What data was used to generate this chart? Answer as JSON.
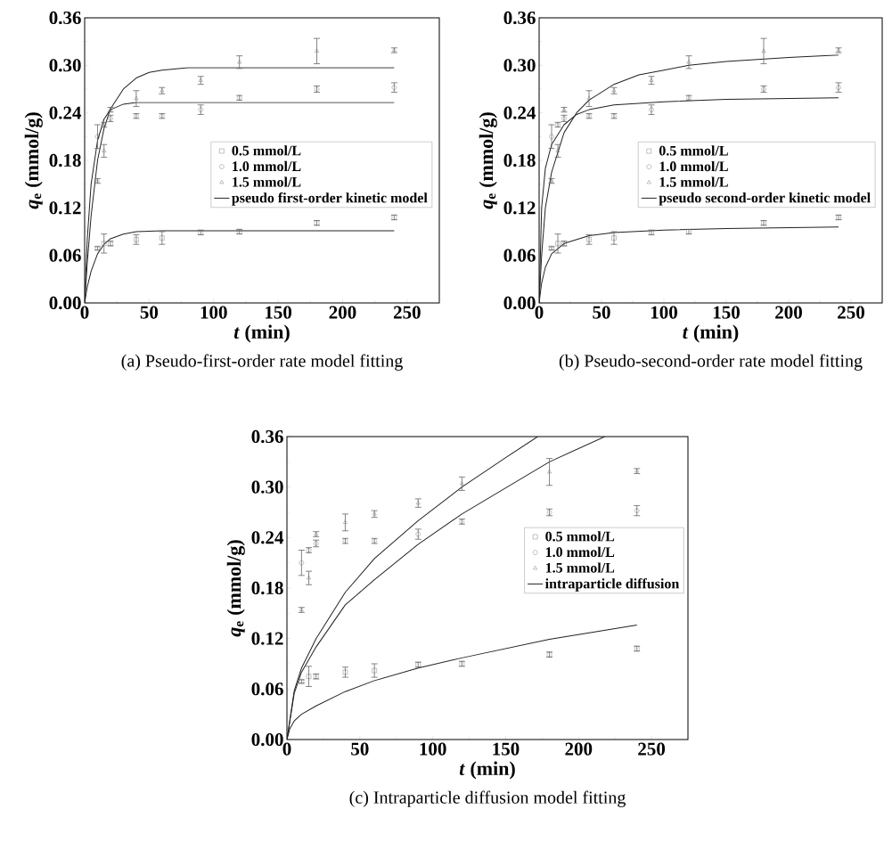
{
  "chart_data": [
    {
      "type": "scatter",
      "title": "(a) Pseudo-first-order rate model fitting",
      "xlabel": "*t* (min)",
      "ylabel": "*q*$_{e}$ (mmol/g)",
      "xlim": [
        0,
        275
      ],
      "ylim": [
        0,
        0.36
      ],
      "xticks": [
        0,
        50,
        100,
        150,
        200,
        250
      ],
      "yticks": [
        {
          "value": 0,
          "label": "0.00"
        },
        {
          "value": 0.06,
          "label": "0.06"
        },
        {
          "value": 0.12,
          "label": "0.12"
        },
        {
          "value": 0.18,
          "label": "0.18"
        },
        {
          "value": 0.24,
          "label": "0.24"
        },
        {
          "value": 0.3,
          "label": "0.30"
        },
        {
          "value": 0.36,
          "label": "0.36"
        }
      ],
      "legend": "right",
      "series": [
        {
          "name": "0.5 mmol/L",
          "marker": "square",
          "color": "#666666",
          "x": [
            10,
            15,
            20,
            40,
            60,
            90,
            120,
            180,
            240
          ],
          "values": [
            0.069,
            0.075,
            0.075,
            0.08,
            0.082,
            0.089,
            0.09,
            0.101,
            0.108
          ],
          "errors": [
            0.002,
            0.012,
            0.003,
            0.006,
            0.008,
            0.003,
            0.003,
            0.003,
            0.003
          ]
        },
        {
          "name": "1.0 mmol/L",
          "marker": "circle",
          "color": "#666666",
          "x": [
            10,
            15,
            20,
            40,
            60,
            90,
            120,
            180,
            240
          ],
          "values": [
            0.21,
            0.225,
            0.233,
            0.236,
            0.236,
            0.244,
            0.259,
            0.27,
            0.272
          ],
          "errors": [
            0.015,
            0.003,
            0.004,
            0.003,
            0.003,
            0.006,
            0.003,
            0.004,
            0.006
          ]
        },
        {
          "name": "1.5 mmol/L",
          "marker": "triangle",
          "color": "#666666",
          "x": [
            10,
            15,
            20,
            40,
            60,
            90,
            120,
            180,
            240
          ],
          "values": [
            0.154,
            0.192,
            0.244,
            0.258,
            0.268,
            0.281,
            0.304,
            0.318,
            0.319
          ],
          "errors": [
            0.003,
            0.008,
            0.003,
            0.01,
            0.004,
            0.005,
            0.008,
            0.016,
            0.003
          ]
        },
        {
          "name": "pseudo first-order kinetic model",
          "type": "line",
          "color": "#222222",
          "x": [
            0,
            2,
            5,
            10,
            15,
            20,
            30,
            40,
            60,
            100,
            240
          ],
          "values": [
            0,
            0.02,
            0.04,
            0.062,
            0.074,
            0.081,
            0.087,
            0.09,
            0.091,
            0.091,
            0.091
          ]
        },
        {
          "type": "line",
          "color": "#222222",
          "x": [
            0,
            2,
            5,
            10,
            15,
            20,
            30,
            40,
            60,
            240
          ],
          "values": [
            0,
            0.08,
            0.15,
            0.205,
            0.232,
            0.244,
            0.251,
            0.253,
            0.253,
            0.253
          ]
        },
        {
          "type": "line",
          "color": "#222222",
          "x": [
            0,
            2,
            5,
            10,
            15,
            20,
            30,
            40,
            50,
            60,
            80,
            100,
            240
          ],
          "values": [
            0,
            0.05,
            0.11,
            0.18,
            0.22,
            0.245,
            0.27,
            0.284,
            0.291,
            0.294,
            0.297,
            0.297,
            0.297
          ]
        }
      ]
    },
    {
      "type": "scatter",
      "title": "(b) Pseudo-second-order rate model fitting",
      "xlabel": "*t* (min)",
      "ylabel": "*q*$_{e}$ (mmol/g)",
      "xlim": [
        0,
        275
      ],
      "ylim": [
        0,
        0.36
      ],
      "xticks": [
        0,
        50,
        100,
        150,
        200,
        250
      ],
      "yticks": [
        {
          "value": 0,
          "label": "0.00"
        },
        {
          "value": 0.06,
          "label": "0.06"
        },
        {
          "value": 0.12,
          "label": "0.12"
        },
        {
          "value": 0.18,
          "label": "0.18"
        },
        {
          "value": 0.24,
          "label": "0.24"
        },
        {
          "value": 0.3,
          "label": "0.30"
        },
        {
          "value": 0.36,
          "label": "0.36"
        }
      ],
      "legend": "right",
      "series": [
        {
          "name": "0.5 mmol/L",
          "marker": "square",
          "color": "#666666",
          "x": [
            10,
            15,
            20,
            40,
            60,
            90,
            120,
            180,
            240
          ],
          "values": [
            0.069,
            0.075,
            0.075,
            0.08,
            0.082,
            0.089,
            0.09,
            0.101,
            0.108
          ],
          "errors": [
            0.002,
            0.012,
            0.003,
            0.006,
            0.008,
            0.003,
            0.003,
            0.003,
            0.003
          ]
        },
        {
          "name": "1.0 mmol/L",
          "marker": "circle",
          "color": "#666666",
          "x": [
            10,
            15,
            20,
            40,
            60,
            90,
            120,
            180,
            240
          ],
          "values": [
            0.21,
            0.225,
            0.233,
            0.236,
            0.236,
            0.244,
            0.259,
            0.27,
            0.272
          ],
          "errors": [
            0.015,
            0.003,
            0.004,
            0.003,
            0.003,
            0.006,
            0.003,
            0.004,
            0.006
          ]
        },
        {
          "name": "1.5 mmol/L",
          "marker": "triangle",
          "color": "#666666",
          "x": [
            10,
            15,
            20,
            40,
            60,
            90,
            120,
            180,
            240
          ],
          "values": [
            0.154,
            0.192,
            0.244,
            0.258,
            0.268,
            0.281,
            0.304,
            0.318,
            0.319
          ],
          "errors": [
            0.003,
            0.008,
            0.003,
            0.01,
            0.004,
            0.005,
            0.008,
            0.016,
            0.003
          ]
        },
        {
          "name": "pseudo second-order kinetic model",
          "type": "line",
          "color": "#222222",
          "x": [
            0,
            2,
            5,
            10,
            20,
            40,
            60,
            100,
            150,
            240
          ],
          "values": [
            0,
            0.025,
            0.045,
            0.062,
            0.075,
            0.085,
            0.089,
            0.092,
            0.094,
            0.096
          ]
        },
        {
          "type": "line",
          "color": "#222222",
          "x": [
            0,
            2,
            5,
            10,
            20,
            30,
            40,
            60,
            100,
            150,
            240
          ],
          "values": [
            0,
            0.12,
            0.17,
            0.2,
            0.225,
            0.238,
            0.244,
            0.25,
            0.254,
            0.257,
            0.259
          ]
        },
        {
          "type": "line",
          "color": "#222222",
          "x": [
            0,
            2,
            5,
            10,
            20,
            30,
            40,
            60,
            80,
            100,
            120,
            150,
            200,
            240
          ],
          "values": [
            0,
            0.06,
            0.12,
            0.165,
            0.215,
            0.24,
            0.256,
            0.276,
            0.288,
            0.294,
            0.3,
            0.305,
            0.31,
            0.313
          ]
        }
      ]
    },
    {
      "type": "scatter",
      "title": "(c) Intraparticle diffusion model fitting",
      "xlabel": "*t* (min)",
      "ylabel": "*q*$_{e}$ (mmol/g)",
      "xlim": [
        0,
        275
      ],
      "ylim": [
        0,
        0.36
      ],
      "xticks": [
        0,
        50,
        100,
        150,
        200,
        250
      ],
      "yticks": [
        {
          "value": 0,
          "label": "0.00"
        },
        {
          "value": 0.06,
          "label": "0.06"
        },
        {
          "value": 0.12,
          "label": "0.12"
        },
        {
          "value": 0.18,
          "label": "0.18"
        },
        {
          "value": 0.24,
          "label": "0.24"
        },
        {
          "value": 0.3,
          "label": "0.30"
        },
        {
          "value": 0.36,
          "label": "0.36"
        }
      ],
      "legend": "top right",
      "series": [
        {
          "name": "0.5 mmol/L",
          "marker": "square",
          "color": "#666666",
          "x": [
            10,
            15,
            20,
            40,
            60,
            90,
            120,
            180,
            240
          ],
          "values": [
            0.069,
            0.075,
            0.075,
            0.08,
            0.082,
            0.089,
            0.09,
            0.101,
            0.108
          ],
          "errors": [
            0.002,
            0.012,
            0.003,
            0.006,
            0.008,
            0.003,
            0.003,
            0.003,
            0.003
          ]
        },
        {
          "name": "1.0 mmol/L",
          "marker": "circle",
          "color": "#666666",
          "x": [
            10,
            15,
            20,
            40,
            60,
            90,
            120,
            180,
            240
          ],
          "values": [
            0.21,
            0.225,
            0.233,
            0.236,
            0.236,
            0.244,
            0.259,
            0.27,
            0.272
          ],
          "errors": [
            0.015,
            0.003,
            0.004,
            0.003,
            0.003,
            0.006,
            0.003,
            0.004,
            0.006
          ]
        },
        {
          "name": "1.5 mmol/L",
          "marker": "triangle",
          "color": "#666666",
          "x": [
            10,
            15,
            20,
            40,
            60,
            90,
            120,
            180,
            240
          ],
          "values": [
            0.154,
            0.192,
            0.244,
            0.258,
            0.268,
            0.281,
            0.304,
            0.318,
            0.319
          ],
          "errors": [
            0.003,
            0.008,
            0.003,
            0.01,
            0.004,
            0.005,
            0.008,
            0.016,
            0.003
          ]
        },
        {
          "name": "intraparticle diffusion",
          "type": "line",
          "color": "#222222",
          "x": [
            0,
            2,
            5,
            10,
            20,
            40,
            60,
            90,
            120,
            180,
            240
          ],
          "values": [
            0,
            0.013,
            0.022,
            0.03,
            0.04,
            0.057,
            0.07,
            0.085,
            0.097,
            0.119,
            0.136
          ]
        },
        {
          "type": "line",
          "color": "#222222",
          "x": [
            0,
            5,
            10,
            20,
            40,
            60,
            90,
            120,
            180,
            218
          ],
          "values": [
            0,
            0.055,
            0.08,
            0.11,
            0.16,
            0.19,
            0.232,
            0.268,
            0.33,
            0.36
          ]
        },
        {
          "type": "line",
          "color": "#222222",
          "x": [
            0,
            5,
            10,
            20,
            40,
            60,
            90,
            120,
            150,
            172
          ],
          "values": [
            0,
            0.058,
            0.085,
            0.12,
            0.175,
            0.215,
            0.26,
            0.3,
            0.335,
            0.36
          ]
        }
      ]
    }
  ]
}
